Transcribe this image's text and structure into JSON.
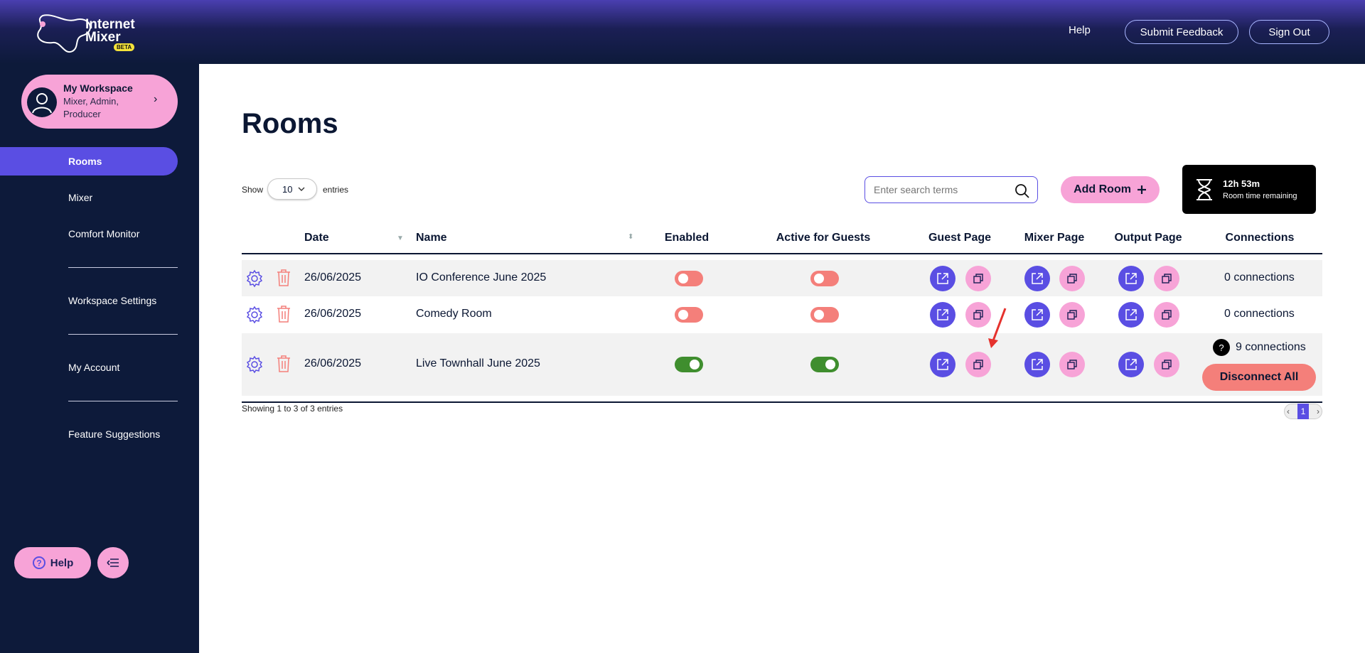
{
  "brand": {
    "line1": "Internet",
    "line2": "Mixer",
    "badge": "BETA"
  },
  "header": {
    "help": "Help",
    "feedback": "Submit Feedback",
    "signout": "Sign Out"
  },
  "workspace": {
    "title": "My Workspace",
    "roles": "Mixer, Admin, Producer"
  },
  "sidebar": {
    "items": [
      {
        "label": "Rooms"
      },
      {
        "label": "Mixer"
      },
      {
        "label": "Comfort Monitor"
      },
      {
        "label": "Workspace Settings"
      },
      {
        "label": "My Account"
      },
      {
        "label": "Feature Suggestions"
      }
    ],
    "help_label": "Help"
  },
  "page": {
    "title": "Rooms",
    "show_label": "Show",
    "entries_value": "10",
    "entries_label": "entries",
    "search_placeholder": "Enter search terms",
    "add_room": "Add Room",
    "time_main": "12h 53m",
    "time_sub": "Room time remaining"
  },
  "table": {
    "headers": {
      "date": "Date",
      "name": "Name",
      "enabled": "Enabled",
      "active": "Active for Guests",
      "guest": "Guest Page",
      "mixer": "Mixer Page",
      "output": "Output Page",
      "connections": "Connections"
    },
    "rows": [
      {
        "date": "26/06/2025",
        "name": "IO Conference June 2025",
        "enabled": false,
        "active": false,
        "connections": "0 connections"
      },
      {
        "date": "26/06/2025",
        "name": "Comedy Room",
        "enabled": false,
        "active": false,
        "connections": "0 connections"
      },
      {
        "date": "26/06/2025",
        "name": "Live Townhall June 2025",
        "enabled": true,
        "active": true,
        "connections": "9 connections",
        "action": "Disconnect All",
        "badge": "?"
      }
    ],
    "footer": "Showing 1 to 3 of 3 entries",
    "page_number": "1"
  },
  "colors": {
    "accent": "#5a4ee3",
    "pink": "#f7a3d7",
    "navy": "#0d1a3a",
    "toggle_off": "#f47f7a",
    "toggle_on": "#3f8e2e"
  }
}
